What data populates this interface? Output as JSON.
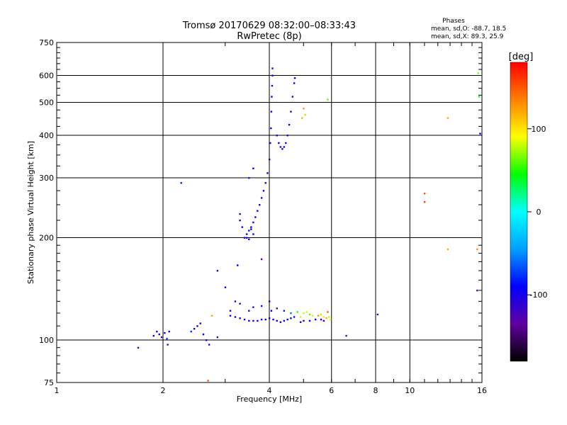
{
  "chart_data": {
    "type": "scatter",
    "title": "Tromsø 20170629 08:32:00–08:33:43",
    "subtitle": "RwPretec (8p)",
    "xlabel": "Frequency [MHz]",
    "ylabel": "Stationary phase Virtual Height [km]",
    "xscale": "log",
    "yscale": "log",
    "xlim": [
      1,
      16
    ],
    "ylim": [
      75,
      750
    ],
    "xticks": [
      1,
      2,
      4,
      6,
      8,
      10,
      16
    ],
    "yticks": [
      75,
      100,
      200,
      300,
      400,
      500,
      600,
      750
    ],
    "x_gridlines": [
      2,
      4,
      6,
      8,
      10
    ],
    "y_gridlines": [
      100,
      200,
      300,
      400,
      500,
      600
    ],
    "grid": true,
    "stats": {
      "heading": "Phases",
      "line1": "mean, sd,O: -88.7, 18.5",
      "line2": "mean, sd,X:  89.3, 25.9"
    },
    "colorbar": {
      "label": "[deg]",
      "range": [
        -180,
        180
      ],
      "ticks": [
        100,
        0,
        -100
      ],
      "colormap": "rainbow",
      "stops": [
        "#000000",
        "#6000a0",
        "#0000ff",
        "#00a0ff",
        "#00ffff",
        "#00ff00",
        "#ffff00",
        "#ff8000",
        "#ff0000"
      ]
    },
    "series": [
      {
        "points": [
          [
            1.7,
            95,
            -120
          ],
          [
            1.88,
            103,
            -90
          ],
          [
            1.92,
            106,
            -100
          ],
          [
            1.95,
            104,
            -95
          ],
          [
            1.98,
            102,
            -110
          ],
          [
            2.02,
            105,
            -90
          ],
          [
            2.05,
            101,
            -70
          ],
          [
            2.08,
            106,
            -95
          ],
          [
            2.06,
            97,
            -85
          ],
          [
            2.25,
            290,
            -80
          ],
          [
            2.4,
            106,
            -80
          ],
          [
            2.45,
            108,
            -95
          ],
          [
            2.5,
            110,
            -100
          ],
          [
            2.55,
            112,
            -100
          ],
          [
            2.6,
            104,
            -90
          ],
          [
            2.65,
            100,
            -85
          ],
          [
            2.7,
            97,
            -100
          ],
          [
            2.75,
            118,
            120
          ],
          [
            2.85,
            102,
            -110
          ],
          [
            2.68,
            76,
            150
          ],
          [
            2.85,
            160,
            -100
          ],
          [
            3.0,
            143,
            -100
          ],
          [
            3.1,
            122,
            -100
          ],
          [
            3.2,
            130,
            -100
          ],
          [
            3.25,
            166,
            -90
          ],
          [
            3.3,
            128,
            -95
          ],
          [
            3.1,
            118,
            -100
          ],
          [
            3.2,
            117,
            -100
          ],
          [
            3.3,
            116,
            -100
          ],
          [
            3.4,
            115,
            -100
          ],
          [
            3.5,
            114,
            -95
          ],
          [
            3.6,
            114,
            -100
          ],
          [
            3.7,
            114,
            -100
          ],
          [
            3.8,
            115,
            -95
          ],
          [
            3.9,
            115,
            -100
          ],
          [
            4.0,
            116,
            -100
          ],
          [
            4.1,
            115,
            -95
          ],
          [
            4.2,
            114,
            -100
          ],
          [
            4.3,
            113,
            -100
          ],
          [
            4.4,
            114,
            -95
          ],
          [
            4.5,
            115,
            -100
          ],
          [
            4.6,
            116,
            -95
          ],
          [
            4.7,
            117,
            -100
          ],
          [
            3.5,
            122,
            -110
          ],
          [
            3.6,
            125,
            -120
          ],
          [
            3.8,
            126,
            -100
          ],
          [
            4.0,
            130,
            -90
          ],
          [
            4.05,
            122,
            -90
          ],
          [
            4.2,
            124,
            -100
          ],
          [
            4.4,
            122,
            -80
          ],
          [
            4.6,
            120,
            -60
          ],
          [
            4.8,
            121,
            50
          ],
          [
            4.9,
            117,
            80
          ],
          [
            5.0,
            120,
            100
          ],
          [
            5.1,
            121,
            80
          ],
          [
            5.2,
            119,
            60
          ],
          [
            5.3,
            118,
            80
          ],
          [
            4.9,
            113,
            -100
          ],
          [
            5.0,
            114,
            -100
          ],
          [
            5.2,
            114,
            -90
          ],
          [
            5.4,
            115,
            -95
          ],
          [
            5.6,
            115,
            -100
          ],
          [
            5.7,
            114,
            -95
          ],
          [
            5.5,
            118,
            130
          ],
          [
            5.6,
            119,
            110
          ],
          [
            5.7,
            117,
            100
          ],
          [
            5.8,
            116,
            120
          ],
          [
            5.9,
            117,
            80
          ],
          [
            5.95,
            115,
            90
          ],
          [
            5.85,
            121,
            150
          ],
          [
            3.8,
            173,
            -130
          ],
          [
            6.6,
            103,
            -130
          ],
          [
            8.1,
            119,
            -110
          ],
          [
            3.4,
            200,
            -90
          ],
          [
            3.45,
            205,
            -95
          ],
          [
            3.5,
            210,
            -100
          ],
          [
            3.55,
            215,
            -95
          ],
          [
            3.6,
            222,
            -100
          ],
          [
            3.65,
            230,
            -90
          ],
          [
            3.7,
            240,
            -100
          ],
          [
            3.75,
            250,
            -95
          ],
          [
            3.8,
            262,
            -100
          ],
          [
            3.85,
            275,
            -90
          ],
          [
            3.9,
            290,
            -100
          ],
          [
            3.95,
            310,
            -95
          ],
          [
            4.0,
            340,
            -100
          ],
          [
            4.02,
            380,
            -90
          ],
          [
            4.04,
            420,
            -95
          ],
          [
            4.05,
            470,
            -100
          ],
          [
            4.06,
            520,
            -90
          ],
          [
            4.07,
            560,
            -95
          ],
          [
            4.08,
            600,
            -100
          ],
          [
            4.08,
            630,
            -110
          ],
          [
            3.3,
            225,
            -100
          ],
          [
            3.35,
            215,
            -100
          ],
          [
            3.45,
            200,
            -90
          ],
          [
            3.5,
            198,
            -100
          ],
          [
            3.6,
            205,
            -95
          ],
          [
            3.55,
            212,
            -90
          ],
          [
            3.5,
            300,
            -80
          ],
          [
            3.6,
            320,
            -90
          ],
          [
            3.3,
            235,
            -100
          ],
          [
            4.2,
            400,
            -100
          ],
          [
            4.25,
            380,
            -95
          ],
          [
            4.3,
            370,
            -100
          ],
          [
            4.35,
            365,
            -90
          ],
          [
            4.4,
            370,
            -100
          ],
          [
            4.45,
            380,
            -95
          ],
          [
            4.5,
            400,
            -100
          ],
          [
            4.55,
            430,
            -90
          ],
          [
            4.6,
            470,
            -100
          ],
          [
            4.65,
            520,
            -95
          ],
          [
            4.7,
            570,
            -100
          ],
          [
            4.72,
            590,
            -90
          ],
          [
            5.0,
            480,
            130
          ],
          [
            5.05,
            460,
            110
          ],
          [
            4.95,
            450,
            120
          ],
          [
            5.85,
            510,
            60
          ],
          [
            11.0,
            270,
            150
          ],
          [
            11.0,
            255,
            160
          ],
          [
            12.8,
            450,
            120
          ],
          [
            12.8,
            185,
            120
          ],
          [
            15.5,
            185,
            130
          ],
          [
            15.6,
            610,
            70
          ],
          [
            15.7,
            520,
            30
          ],
          [
            15.8,
            405,
            -100
          ],
          [
            15.5,
            140,
            -140
          ]
        ]
      }
    ]
  }
}
